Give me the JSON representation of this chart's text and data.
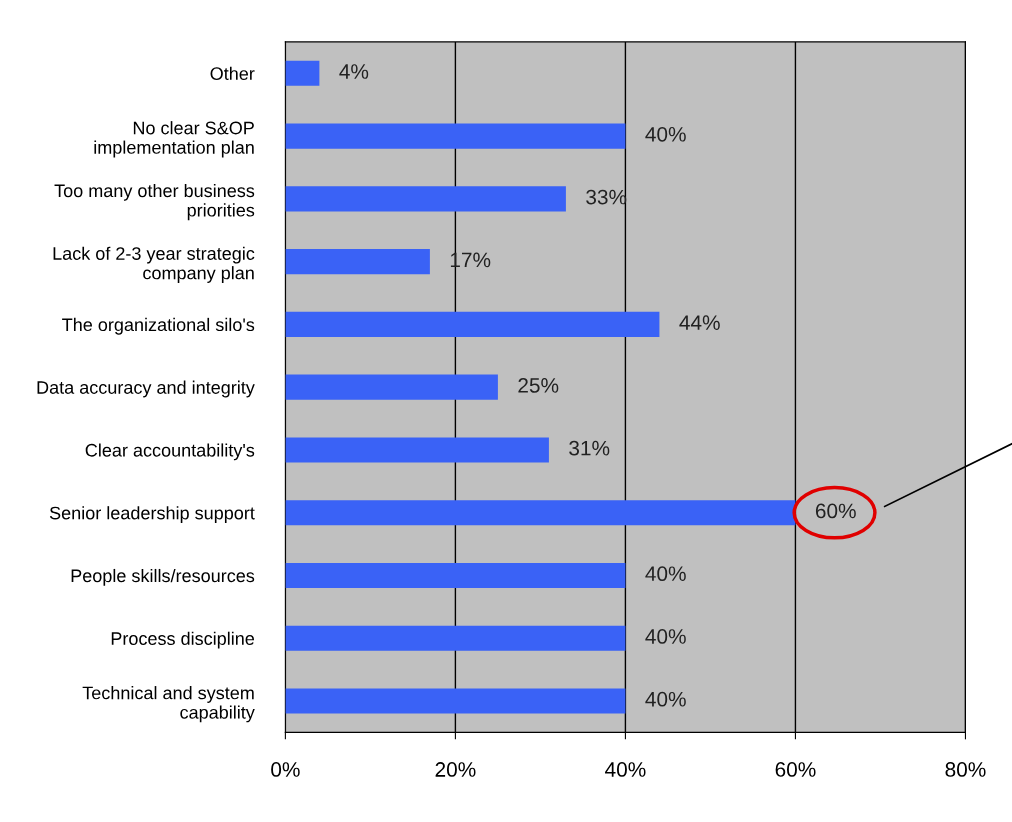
{
  "chart_data": {
    "type": "bar",
    "orientation": "horizontal",
    "categories": [
      "Other",
      "No clear S&OP\nimplementation plan",
      "Too many other business\npriorities",
      "Lack of 2-3 year strategic\ncompany plan",
      "The organizational silo's",
      "Data accuracy and integrity",
      "Clear accountability's",
      "Senior leadership support",
      "People skills/resources",
      "Process discipline",
      "Technical and system\ncapability"
    ],
    "values": [
      4,
      40,
      33,
      17,
      44,
      25,
      31,
      60,
      40,
      40,
      40
    ],
    "value_labels": [
      "4%",
      "40%",
      "33%",
      "17%",
      "44%",
      "25%",
      "31%",
      "60%",
      "40%",
      "40%",
      "40%"
    ],
    "color": "#3a62f6",
    "xlim": [
      0,
      80
    ],
    "xticks": [
      {
        "value": 0,
        "label": "0%"
      },
      {
        "value": 20,
        "label": "20%"
      },
      {
        "value": 40,
        "label": "40%"
      },
      {
        "value": 60,
        "label": "60%"
      },
      {
        "value": 80,
        "label": "80%"
      }
    ],
    "grid": "x",
    "legend": false
  }
}
